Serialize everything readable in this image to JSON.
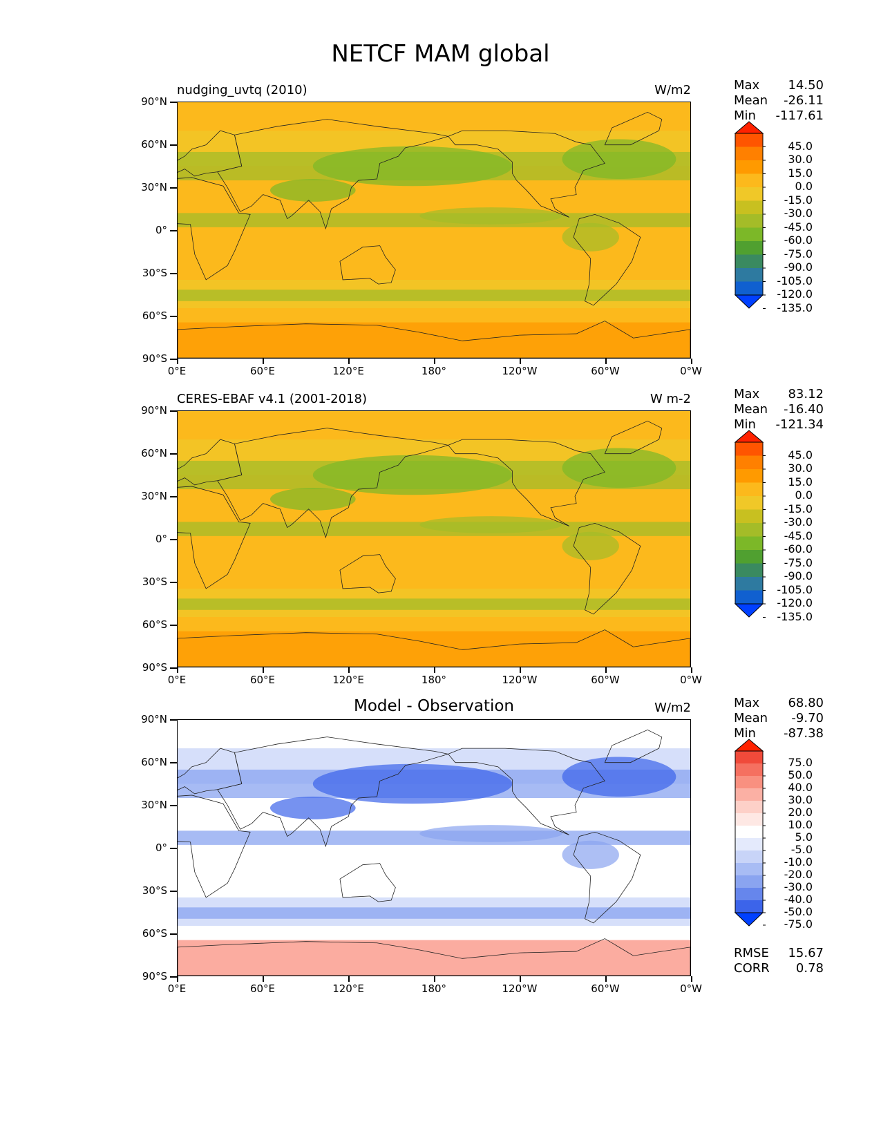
{
  "figure": {
    "title": "NETCF MAM global"
  },
  "axes": {
    "yticks": [
      "90°N",
      "60°N",
      "30°N",
      "0°",
      "30°S",
      "60°S",
      "90°S"
    ],
    "xticks": [
      "0°E",
      "60°E",
      "120°E",
      "180°",
      "120°W",
      "60°W",
      "0°W"
    ]
  },
  "panels": [
    {
      "left_title": "nudging_uvtq (2010)",
      "center_title": "",
      "units": "W/m2",
      "stats": {
        "max_label": "Max",
        "max": "14.50",
        "mean_label": "Mean",
        "mean": "-26.11",
        "min_label": "Min",
        "min": "-117.61"
      },
      "colorbar": {
        "labels": [
          "45.0",
          "30.0",
          "15.0",
          "0.0",
          "-15.0",
          "-30.0",
          "-45.0",
          "-60.0",
          "-75.0",
          "-90.0",
          "-105.0",
          "-120.0",
          "-135.0"
        ],
        "colors": [
          "#ff2200",
          "#ff5500",
          "#ff8000",
          "#ff9a00",
          "#fcb91c",
          "#f0c828",
          "#c8c020",
          "#a4bc28",
          "#7cb828",
          "#50a030",
          "#3a8a60",
          "#2e7aa0",
          "#1060d0",
          "#0040ff"
        ]
      },
      "map_colors": {
        "base": "#fcb91c",
        "band": "#f0c828",
        "green": "#a4bc28",
        "deep": "#7cb828",
        "warm": "#ff9a00"
      }
    },
    {
      "left_title": "CERES-EBAF v4.1 (2001-2018)",
      "center_title": "",
      "units": "W m-2",
      "stats": {
        "max_label": "Max",
        "max": "83.12",
        "mean_label": "Mean",
        "mean": "-16.40",
        "min_label": "Min",
        "min": "-121.34"
      },
      "colorbar": {
        "labels": [
          "45.0",
          "30.0",
          "15.0",
          "0.0",
          "-15.0",
          "-30.0",
          "-45.0",
          "-60.0",
          "-75.0",
          "-90.0",
          "-105.0",
          "-120.0",
          "-135.0"
        ],
        "colors": [
          "#ff2200",
          "#ff5500",
          "#ff8000",
          "#ff9a00",
          "#fcb91c",
          "#f0c828",
          "#c8c020",
          "#a4bc28",
          "#7cb828",
          "#50a030",
          "#3a8a60",
          "#2e7aa0",
          "#1060d0",
          "#0040ff"
        ]
      },
      "map_colors": {
        "base": "#fcb91c",
        "band": "#f0c828",
        "green": "#a4bc28",
        "deep": "#7cb828",
        "warm": "#ff9a00"
      }
    },
    {
      "left_title": "",
      "center_title": "Model - Observation",
      "units": "W/m2",
      "stats": {
        "max_label": "Max",
        "max": "68.80",
        "mean_label": "Mean",
        "mean": "-9.70",
        "min_label": "Min",
        "min": "-87.38"
      },
      "colorbar": {
        "labels": [
          "75.0",
          "50.0",
          "40.0",
          "30.0",
          "20.0",
          "10.0",
          "5.0",
          "-5.0",
          "-10.0",
          "-20.0",
          "-30.0",
          "-40.0",
          "-50.0",
          "-75.0"
        ],
        "colors": [
          "#ff2200",
          "#f04a3a",
          "#f57060",
          "#f99080",
          "#fbb0a4",
          "#fdd0c8",
          "#fee8e4",
          "#ffffff",
          "#e4eafc",
          "#c8d4f8",
          "#a8bcf4",
          "#8aa4f0",
          "#6686ec",
          "#3c64ea",
          "#0040ff"
        ]
      },
      "map_colors": {
        "base": "#ffffff",
        "band": "#c8d4f8",
        "green": "#8aa4f0",
        "deep": "#3c64ea",
        "warm": "#f99080"
      },
      "metrics": {
        "rmse_label": "RMSE",
        "rmse": "15.67",
        "corr_label": "CORR",
        "corr": "0.78"
      }
    }
  ],
  "chart_data": [
    {
      "type": "heatmap",
      "title": "nudging_uvtq (2010)",
      "units": "W/m2",
      "x_ticks": [
        "0°E",
        "60°E",
        "120°E",
        "180°",
        "120°W",
        "60°W",
        "0°W"
      ],
      "y_ticks": [
        "90°N",
        "60°N",
        "30°N",
        "0°",
        "30°S",
        "60°S",
        "90°S"
      ],
      "xlim": [
        0,
        360
      ],
      "ylim": [
        -90,
        90
      ],
      "stats": {
        "max": 14.5,
        "mean": -26.11,
        "min": -117.61
      },
      "colorbar_levels": [
        -135.0,
        -120.0,
        -105.0,
        -90.0,
        -75.0,
        -60.0,
        -45.0,
        -30.0,
        -15.0,
        0.0,
        15.0,
        30.0,
        45.0
      ],
      "colorbar_extend": "both"
    },
    {
      "type": "heatmap",
      "title": "CERES-EBAF v4.1 (2001-2018)",
      "units": "W m-2",
      "x_ticks": [
        "0°E",
        "60°E",
        "120°E",
        "180°",
        "120°W",
        "60°W",
        "0°W"
      ],
      "y_ticks": [
        "90°N",
        "60°N",
        "30°N",
        "0°",
        "30°S",
        "60°S",
        "90°S"
      ],
      "xlim": [
        0,
        360
      ],
      "ylim": [
        -90,
        90
      ],
      "stats": {
        "max": 83.12,
        "mean": -16.4,
        "min": -121.34
      },
      "colorbar_levels": [
        -135.0,
        -120.0,
        -105.0,
        -90.0,
        -75.0,
        -60.0,
        -45.0,
        -30.0,
        -15.0,
        0.0,
        15.0,
        30.0,
        45.0
      ],
      "colorbar_extend": "both"
    },
    {
      "type": "heatmap",
      "title": "Model - Observation",
      "units": "W/m2",
      "x_ticks": [
        "0°E",
        "60°E",
        "120°E",
        "180°",
        "120°W",
        "60°W",
        "0°W"
      ],
      "y_ticks": [
        "90°N",
        "60°N",
        "30°N",
        "0°",
        "30°S",
        "60°S",
        "90°S"
      ],
      "xlim": [
        0,
        360
      ],
      "ylim": [
        -90,
        90
      ],
      "stats": {
        "max": 68.8,
        "mean": -9.7,
        "min": -87.38
      },
      "metrics": {
        "rmse": 15.67,
        "corr": 0.78
      },
      "colorbar_levels": [
        -75.0,
        -50.0,
        -40.0,
        -30.0,
        -20.0,
        -10.0,
        -5.0,
        5.0,
        10.0,
        20.0,
        30.0,
        40.0,
        50.0,
        75.0
      ],
      "colorbar_extend": "both"
    }
  ]
}
